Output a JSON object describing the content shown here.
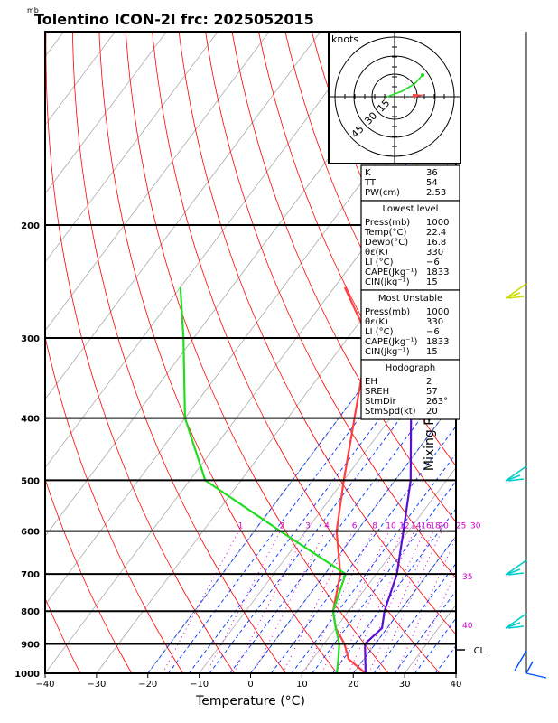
{
  "header": {
    "title": "Tolentino ICON-2l frc: 2025052015",
    "unit_top": "mb"
  },
  "axes": {
    "xlabel": "Temperature (°C)",
    "ylabel": "Mixing Ratio (g/kg)",
    "xticks": [
      "−40",
      "−30",
      "−20",
      "−10",
      "0",
      "10",
      "20",
      "30",
      "40"
    ],
    "yticks": [
      "200",
      "300",
      "400",
      "500",
      "600",
      "700",
      "800",
      "900",
      "1000"
    ]
  },
  "mixing_ratio_labels": [
    "1",
    "2",
    "3",
    "4",
    "6",
    "8",
    "10",
    "12",
    "14",
    "16",
    "18",
    "20",
    "25",
    "30"
  ],
  "theta_labels": [
    "35",
    "40"
  ],
  "lcl_label": "LCL",
  "hodograph": {
    "title": "knots",
    "rings": [
      "15",
      "30",
      "45"
    ]
  },
  "indices": {
    "top": [
      {
        "k": "K",
        "v": "36"
      },
      {
        "k": "TT",
        "v": "54"
      },
      {
        "k": "PW(cm)",
        "v": "2.53"
      }
    ],
    "lowest": {
      "title": "Lowest level",
      "rows": [
        {
          "k": "Press(mb)",
          "v": "1000"
        },
        {
          "k": "Temp(°C)",
          "v": "22.4"
        },
        {
          "k": "Dewp(°C)",
          "v": "16.8"
        },
        {
          "k": "θε(K)",
          "v": "330"
        },
        {
          "k": "LI (°C)",
          "v": "−6"
        },
        {
          "k": "CAPE(Jkg⁻¹)",
          "v": "1833"
        },
        {
          "k": "CIN(Jkg⁻¹)",
          "v": "15"
        }
      ]
    },
    "unstable": {
      "title": "Most Unstable",
      "rows": [
        {
          "k": "Press(mb)",
          "v": "1000"
        },
        {
          "k": "θε(K)",
          "v": "330"
        },
        {
          "k": "LI (°C)",
          "v": "−6"
        },
        {
          "k": "CAPE(Jkg⁻¹)",
          "v": "1833"
        },
        {
          "k": "CIN(Jkg⁻¹)",
          "v": "15"
        }
      ]
    },
    "hodo": {
      "title": "Hodograph",
      "rows": [
        {
          "k": "EH",
          "v": "2"
        },
        {
          "k": "SREH",
          "v": "57"
        },
        {
          "k": "StmDir",
          "v": "263°"
        },
        {
          "k": "StmSpd(kt)",
          "v": "20"
        }
      ]
    }
  },
  "colors": {
    "temperature": "#ff4040",
    "dewpoint": "#20dd20",
    "parcel": "#5a10d0",
    "mixing": "#cc00cc",
    "dry_adiabat": "#ff0000",
    "moist_adiabat": "#0033ff"
  },
  "chart_data": {
    "type": "line",
    "xlim": [
      -40,
      40
    ],
    "ylim": [
      1000,
      100
    ],
    "y_scale": "log",
    "series": [
      {
        "name": "Temperature",
        "points": [
          [
            22.4,
            1000
          ],
          [
            17,
            950
          ],
          [
            14,
            900
          ],
          [
            10,
            850
          ],
          [
            7,
            800
          ],
          [
            3,
            700
          ],
          [
            -4,
            600
          ],
          [
            -10,
            500
          ],
          [
            -17,
            400
          ],
          [
            -26,
            300
          ],
          [
            -38,
            250
          ]
        ]
      },
      {
        "name": "Dewpoint",
        "points": [
          [
            16.8,
            1000
          ],
          [
            15,
            950
          ],
          [
            13,
            900
          ],
          [
            10,
            850
          ],
          [
            7,
            800
          ],
          [
            4,
            700
          ],
          [
            -15,
            600
          ],
          [
            -37,
            500
          ],
          [
            -50,
            400
          ],
          [
            -62,
            300
          ],
          [
            -70,
            250
          ]
        ]
      },
      {
        "name": "Parcel",
        "points": [
          [
            22.4,
            1000
          ],
          [
            18,
            900
          ],
          [
            19,
            850
          ],
          [
            17,
            800
          ],
          [
            14,
            700
          ],
          [
            9,
            600
          ],
          [
            3,
            500
          ],
          [
            -6,
            400
          ],
          [
            -21,
            300
          ],
          [
            -52,
            130
          ]
        ]
      }
    ]
  }
}
